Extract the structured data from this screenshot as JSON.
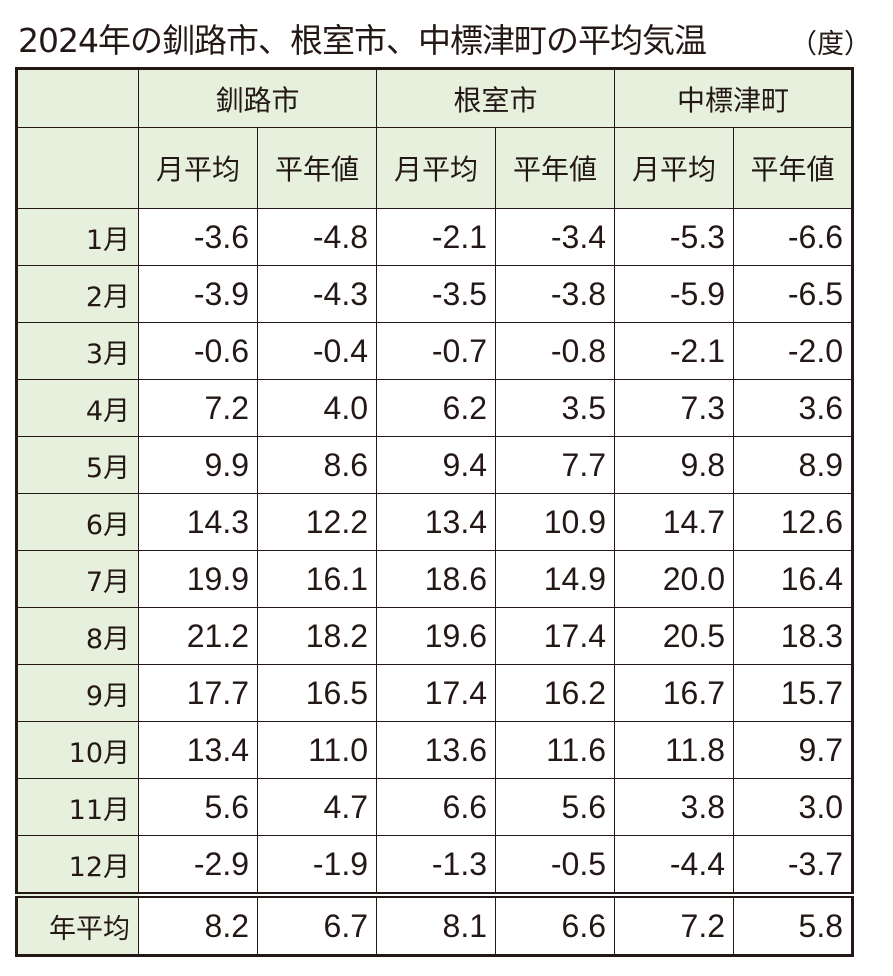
{
  "title": "2024年の釧路市、根室市、中標津町の平均気温",
  "unit": "（度）",
  "chart_data": {
    "type": "table",
    "title": "2024年の釧路市、根室市、中標津町の平均気温",
    "unit": "（度）",
    "cities": [
      "釧路市",
      "根室市",
      "中標津町"
    ],
    "subheaders": [
      "月平均",
      "平年値"
    ],
    "rows": [
      {
        "label": "1月",
        "values": [
          "-3.6",
          "-4.8",
          "-2.1",
          "-3.4",
          "-5.3",
          "-6.6"
        ]
      },
      {
        "label": "2月",
        "values": [
          "-3.9",
          "-4.3",
          "-3.5",
          "-3.8",
          "-5.9",
          "-6.5"
        ]
      },
      {
        "label": "3月",
        "values": [
          "-0.6",
          "-0.4",
          "-0.7",
          "-0.8",
          "-2.1",
          "-2.0"
        ]
      },
      {
        "label": "4月",
        "values": [
          "7.2",
          "4.0",
          "6.2",
          "3.5",
          "7.3",
          "3.6"
        ]
      },
      {
        "label": "5月",
        "values": [
          "9.9",
          "8.6",
          "9.4",
          "7.7",
          "9.8",
          "8.9"
        ]
      },
      {
        "label": "6月",
        "values": [
          "14.3",
          "12.2",
          "13.4",
          "10.9",
          "14.7",
          "12.6"
        ]
      },
      {
        "label": "7月",
        "values": [
          "19.9",
          "16.1",
          "18.6",
          "14.9",
          "20.0",
          "16.4"
        ]
      },
      {
        "label": "8月",
        "values": [
          "21.2",
          "18.2",
          "19.6",
          "17.4",
          "20.5",
          "18.3"
        ]
      },
      {
        "label": "9月",
        "values": [
          "17.7",
          "16.5",
          "17.4",
          "16.2",
          "16.7",
          "15.7"
        ]
      },
      {
        "label": "10月",
        "values": [
          "13.4",
          "11.0",
          "13.6",
          "11.6",
          "11.8",
          "9.7"
        ]
      },
      {
        "label": "11月",
        "values": [
          "5.6",
          "4.7",
          "6.6",
          "5.6",
          "3.8",
          "3.0"
        ]
      },
      {
        "label": "12月",
        "values": [
          "-2.9",
          "-1.9",
          "-1.3",
          "-0.5",
          "-4.4",
          "-3.7"
        ]
      },
      {
        "label": "年平均",
        "values": [
          "8.2",
          "6.7",
          "8.1",
          "6.6",
          "7.2",
          "5.8"
        ]
      }
    ],
    "colors": {
      "header_bg": "#e7f0dd",
      "text": "#231815"
    }
  }
}
